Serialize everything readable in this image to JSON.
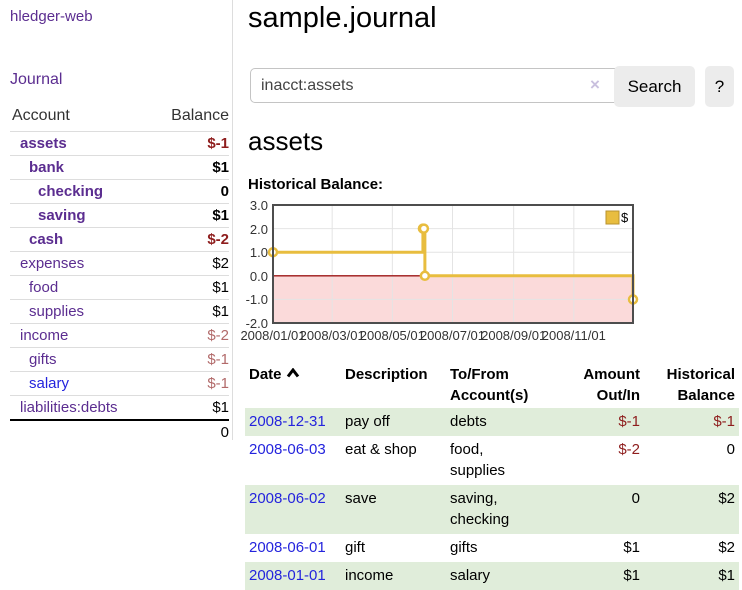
{
  "theme": {
    "purple_link": "#5b2d90",
    "blue_link": "#2424dd",
    "negative_strong": "#8e1d1d",
    "negative_dim": "#b26a6a",
    "row_shade_green": "#e0edda",
    "chart_line_gold": "#e8bd3f"
  },
  "sidebar": {
    "app_title": "hledger-web",
    "nav": {
      "journal": "Journal"
    },
    "table": {
      "headers": {
        "account": "Account",
        "balance": "Balance"
      }
    },
    "accounts": [
      {
        "name": "assets",
        "depth": 0,
        "balance": "$-1",
        "in_filter": true,
        "balance_style": "neg-strong"
      },
      {
        "name": "bank",
        "depth": 1,
        "balance": "$1",
        "in_filter": true,
        "balance_style": "pos"
      },
      {
        "name": "checking",
        "depth": 2,
        "balance": "0",
        "in_filter": true,
        "balance_style": "pos"
      },
      {
        "name": "saving",
        "depth": 2,
        "balance": "$1",
        "in_filter": true,
        "balance_style": "pos"
      },
      {
        "name": "cash",
        "depth": 1,
        "balance": "$-2",
        "in_filter": true,
        "balance_style": "neg-strong"
      },
      {
        "name": "expenses",
        "depth": 0,
        "balance": "$2",
        "in_filter": false,
        "balance_style": "pos"
      },
      {
        "name": "food",
        "depth": 1,
        "balance": "$1",
        "in_filter": false,
        "balance_style": "pos"
      },
      {
        "name": "supplies",
        "depth": 1,
        "balance": "$1",
        "in_filter": false,
        "balance_style": "pos"
      },
      {
        "name": "income",
        "depth": 0,
        "balance": "$-2",
        "in_filter": false,
        "balance_style": "neg-dim"
      },
      {
        "name": "gifts",
        "depth": 1,
        "balance": "$-1",
        "in_filter": false,
        "balance_style": "neg-dim"
      },
      {
        "name": "salary",
        "depth": 1,
        "balance": "$-1",
        "in_filter": false,
        "balance_style": "neg-dim",
        "unvisited": true
      },
      {
        "name": "liabilities:debts",
        "depth": 0,
        "balance": "$1",
        "in_filter": false,
        "balance_style": "pos"
      }
    ],
    "total": "0"
  },
  "header": {
    "title": "sample.journal"
  },
  "search": {
    "value": "inacct:assets",
    "clear_icon": "×",
    "search_button": "Search",
    "help_button": "?"
  },
  "account_page": {
    "heading": "assets",
    "chart_title": "Historical Balance:"
  },
  "chart_data": {
    "type": "line",
    "style": "step",
    "title": "Historical Balance",
    "series": [
      {
        "name": "$",
        "color": "#e8bd3f",
        "points": [
          [
            "2008-01-01",
            1
          ],
          [
            "2008-06-01",
            2
          ],
          [
            "2008-06-02",
            2
          ],
          [
            "2008-06-03",
            0
          ],
          [
            "2008-12-31",
            -1
          ]
        ]
      }
    ],
    "x_range": [
      "2008-01-01",
      "2008-12-31"
    ],
    "ylim": [
      -2,
      3
    ],
    "y_ticks": [
      {
        "label": "3.0",
        "value": 3
      },
      {
        "label": "2.0",
        "value": 2
      },
      {
        "label": "1.0",
        "value": 1
      },
      {
        "label": "0.0",
        "value": 0
      },
      {
        "label": "-1.0",
        "value": -1
      },
      {
        "label": "-2.0",
        "value": -2
      }
    ],
    "x_ticks": [
      {
        "label": "2008/01/01",
        "date": "2008-01-01"
      },
      {
        "label": "2008/03/01",
        "date": "2008-03-01"
      },
      {
        "label": "2008/05/01",
        "date": "2008-05-01"
      },
      {
        "label": "2008/07/01",
        "date": "2008-07-01"
      },
      {
        "label": "2008/09/01",
        "date": "2008-09-01"
      },
      {
        "label": "2008/11/01",
        "date": "2008-11-01"
      }
    ],
    "legend": {
      "label": "$",
      "position": "top-right"
    },
    "grid": true,
    "negative_region_color": "#fbdada",
    "zero_line_color": "#9e1616",
    "grid_color": "#e4e4e4",
    "border_color": "#4d4d4d"
  },
  "register": {
    "headers": [
      {
        "lines": [
          "Date"
        ],
        "sorted": "asc"
      },
      {
        "lines": [
          "Description"
        ]
      },
      {
        "lines": [
          "To/From",
          "Account(s)"
        ]
      },
      {
        "lines": [
          "Amount",
          "Out/In"
        ],
        "align": "right"
      },
      {
        "lines": [
          "Historical",
          "Balance"
        ],
        "align": "right"
      }
    ],
    "rows": [
      {
        "date": "2008-12-31",
        "description": "pay off",
        "accounts": "debts",
        "amount": "$-1",
        "amount_style": "neg-strong",
        "balance": "$-1",
        "balance_style": "neg-strong",
        "shaded": true
      },
      {
        "date": "2008-06-03",
        "description": "eat & shop",
        "accounts": "food, supplies",
        "amount": "$-2",
        "amount_style": "neg-strong",
        "balance": "0",
        "balance_style": "pos",
        "shaded": false
      },
      {
        "date": "2008-06-02",
        "description": "save",
        "accounts": "saving, checking",
        "amount": "0",
        "amount_style": "pos",
        "balance": "$2",
        "balance_style": "pos",
        "shaded": true
      },
      {
        "date": "2008-06-01",
        "description": "gift",
        "accounts": "gifts",
        "amount": "$1",
        "amount_style": "pos",
        "balance": "$2",
        "balance_style": "pos",
        "shaded": false
      },
      {
        "date": "2008-01-01",
        "description": "income",
        "accounts": "salary",
        "amount": "$1",
        "amount_style": "pos",
        "balance": "$1",
        "balance_style": "pos",
        "shaded": true
      }
    ]
  }
}
